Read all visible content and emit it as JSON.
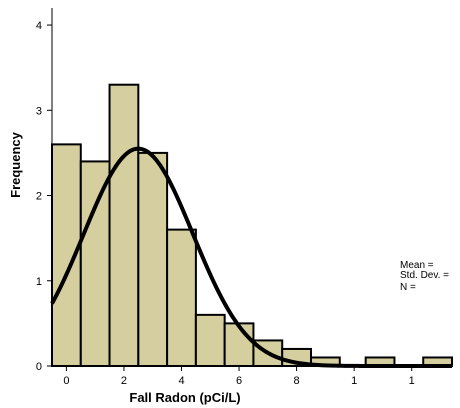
{
  "chart_data": {
    "type": "bar",
    "xlabel": "Fall Radon (pCi/L)",
    "ylabel": "Frequency",
    "x_tick_labels": [
      "0",
      "2",
      "4",
      "6",
      "8",
      "1",
      "1"
    ],
    "y_tick_labels": [
      "0",
      "1",
      "2",
      "3",
      "4"
    ],
    "ylim": [
      0,
      4.2
    ],
    "xlim": [
      -0.5,
      13.4
    ],
    "bins": [
      {
        "x0": -0.5,
        "x1": 0.5,
        "value": 2.6
      },
      {
        "x0": 0.5,
        "x1": 1.5,
        "value": 2.4
      },
      {
        "x0": 1.5,
        "x1": 2.5,
        "value": 3.3
      },
      {
        "x0": 2.5,
        "x1": 3.5,
        "value": 2.5
      },
      {
        "x0": 3.5,
        "x1": 4.5,
        "value": 1.6
      },
      {
        "x0": 4.5,
        "x1": 5.5,
        "value": 0.6
      },
      {
        "x0": 5.5,
        "x1": 6.5,
        "value": 0.5
      },
      {
        "x0": 6.5,
        "x1": 7.5,
        "value": 0.3
      },
      {
        "x0": 7.5,
        "x1": 8.5,
        "value": 0.2
      },
      {
        "x0": 8.5,
        "x1": 9.5,
        "value": 0.1
      },
      {
        "x0": 10.4,
        "x1": 11.4,
        "value": 0.1
      },
      {
        "x0": 12.4,
        "x1": 13.4,
        "value": 0.1
      }
    ],
    "normal_curve": {
      "mean": 2.5,
      "sd": 1.9,
      "peak": 2.55
    },
    "stats_labels": [
      "Mean =",
      "Std. Dev. =",
      "N ="
    ],
    "colors": {
      "bar_fill": "#d5cf9f",
      "bar_stroke": "#000000",
      "curve": "#000000",
      "axis": "#000000"
    }
  }
}
